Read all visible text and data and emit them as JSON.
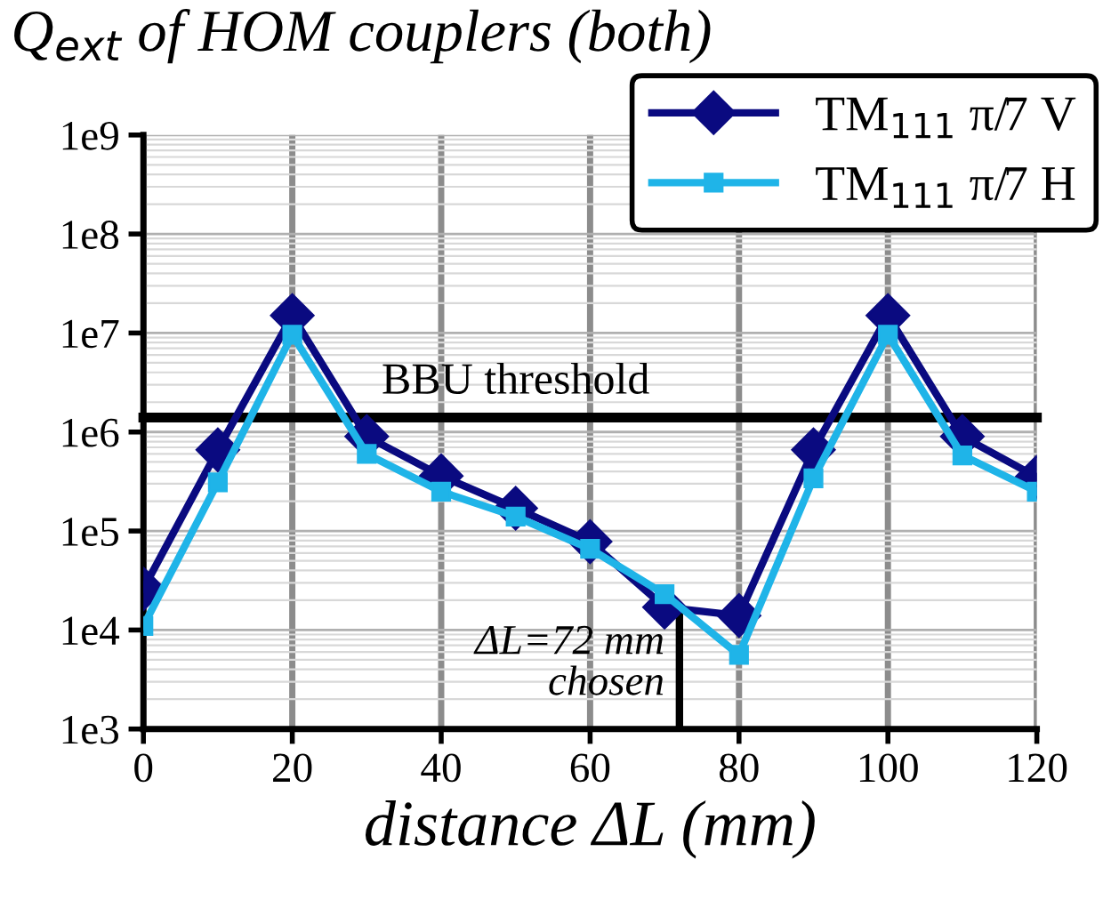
{
  "chart_data": {
    "type": "line",
    "title": "Q$_{ext}$ of HOM couplers (both)",
    "xlabel": "distance ΔL (mm)",
    "x": [
      0,
      10,
      20,
      30,
      40,
      50,
      60,
      70,
      80,
      90,
      100,
      110,
      120
    ],
    "series": [
      {
        "name": "TM$_{111}$ π/7 V",
        "color": "#0a0a80",
        "marker": "diamond",
        "values": [
          26000,
          660000,
          15000000,
          900000,
          360000,
          170000,
          78000,
          17000,
          14000,
          660000,
          15000000,
          900000,
          350000
        ]
      },
      {
        "name": "TM$_{111}$ π/7 H",
        "color": "#1fb4e8",
        "marker": "square",
        "values": [
          11000,
          310000,
          9600000,
          600000,
          250000,
          140000,
          66000,
          23000,
          5600,
          340000,
          9600000,
          580000,
          250000
        ]
      }
    ],
    "log": "y",
    "xlim": [
      0,
      120
    ],
    "xticks": [
      0,
      20,
      40,
      60,
      80,
      100,
      120
    ],
    "ylim": [
      1000,
      1000000000
    ],
    "yticks": [
      {
        "value": 1000,
        "label": "1e3"
      },
      {
        "value": 10000,
        "label": "1e4"
      },
      {
        "value": 100000,
        "label": "1e5"
      },
      {
        "value": 1000000,
        "label": "1e6"
      },
      {
        "value": 10000000,
        "label": "1e7"
      },
      {
        "value": 100000000,
        "label": "1e8"
      },
      {
        "value": 1000000000,
        "label": "1e9"
      }
    ],
    "ref_lines": [
      {
        "axis": "y",
        "value": 1400000,
        "label": "BBU threshold",
        "color": "#000000"
      },
      {
        "axis": "x",
        "value": 72,
        "label": "ΔL=72 mm\nchosen",
        "color": "#000000"
      }
    ],
    "grid": true,
    "legend": "top right",
    "line_style": "solid"
  }
}
